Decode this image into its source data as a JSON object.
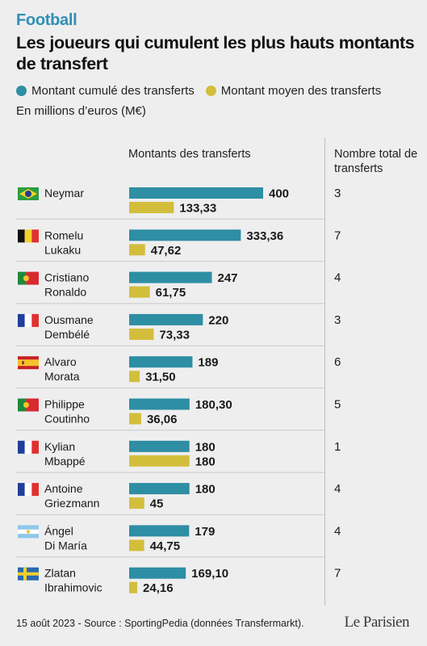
{
  "kicker": "Football",
  "title": "Les joueurs qui cumulent les plus hauts montants de transfert",
  "legend": {
    "total": "Montant cumulé des transferts",
    "average": "Montant moyen des transferts"
  },
  "unit": "En millions d’euros (M€)",
  "columns": {
    "amounts": "Montants des transferts",
    "count": "Nombre total de transferts"
  },
  "colors": {
    "total": "#2e8ea3",
    "average": "#d3be3c"
  },
  "chart_data": {
    "type": "bar",
    "categories": [
      "Neymar",
      "Romelu Lukaku",
      "Cristiano Ronaldo",
      "Ousmane Dembélé",
      "Alvaro Morata",
      "Philippe Coutinho",
      "Kylian Mbappé",
      "Antoine Griezmann",
      "Ángel Di María",
      "Zlatan Ibrahimovic"
    ],
    "name_lines": [
      [
        "Neymar"
      ],
      [
        "Romelu",
        "Lukaku"
      ],
      [
        "Cristiano",
        "Ronaldo"
      ],
      [
        "Ousmane",
        "Dembélé"
      ],
      [
        "Alvaro",
        "Morata"
      ],
      [
        "Philippe",
        "Coutinho"
      ],
      [
        "Kylian",
        "Mbappé"
      ],
      [
        "Antoine",
        "Griezmann"
      ],
      [
        "Ángel",
        "Di María"
      ],
      [
        "Zlatan",
        "Ibrahimovic"
      ]
    ],
    "flags": [
      "brazil",
      "belgium",
      "portugal",
      "france",
      "spain",
      "portugal",
      "france",
      "france",
      "argentina",
      "sweden"
    ],
    "series": [
      {
        "name": "Montant cumulé des transferts",
        "values": [
          400,
          333.36,
          247,
          220,
          189,
          180.3,
          180,
          180,
          179,
          169.1
        ],
        "labels": [
          "400",
          "333,36",
          "247",
          "220",
          "189",
          "180,30",
          "180",
          "180",
          "179",
          "169,10"
        ]
      },
      {
        "name": "Montant moyen des transferts",
        "values": [
          133.33,
          47.62,
          61.75,
          73.33,
          31.5,
          36.06,
          180,
          45,
          44.75,
          24.16
        ],
        "labels": [
          "133,33",
          "47,62",
          "61,75",
          "73,33",
          "31,50",
          "36,06",
          "180",
          "45",
          "44,75",
          "24,16"
        ]
      }
    ],
    "transfer_counts": [
      "3",
      "7",
      "4",
      "3",
      "6",
      "5",
      "1",
      "4",
      "4",
      "7"
    ],
    "xlim": [
      0,
      400
    ]
  },
  "footer": "15 août 2023 - Source : SportingPedia (données Transfermarkt).",
  "logo": "Le Parisien"
}
